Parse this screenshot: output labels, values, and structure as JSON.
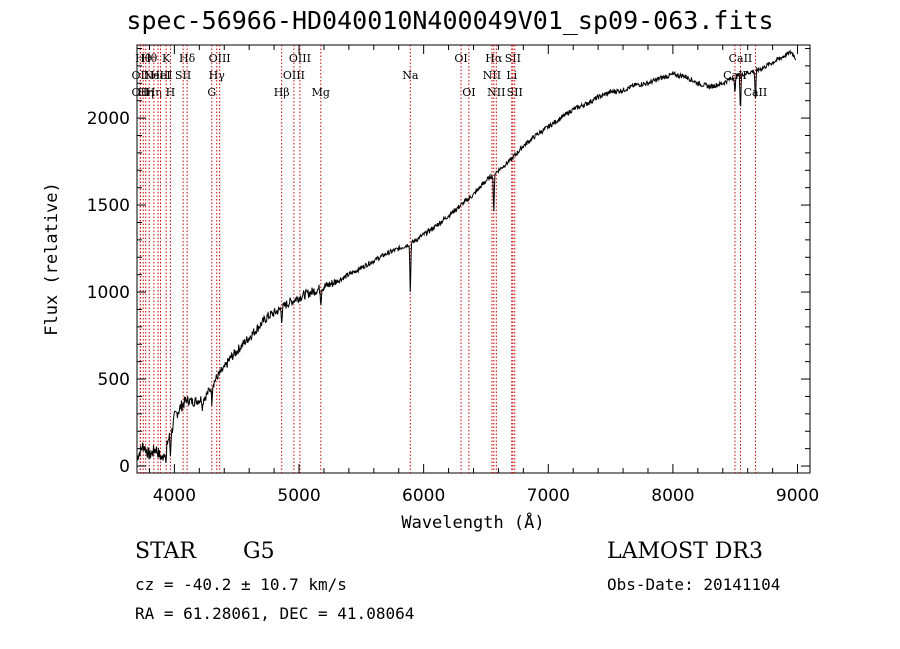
{
  "chart_data": {
    "type": "line",
    "title": "spec-56966-HD040010N400049V01_sp09-063.fits",
    "xlabel": "Wavelength (Å)",
    "ylabel": "Flux (relative)",
    "xlim": [
      3700,
      9100
    ],
    "ylim": [
      -40,
      2420
    ],
    "xticks": [
      4000,
      5000,
      6000,
      7000,
      8000,
      9000
    ],
    "yticks": [
      0,
      500,
      1000,
      1500,
      2000
    ],
    "series": [
      {
        "name": "flux",
        "x": [
          3700,
          3750,
          3800,
          3850,
          3900,
          3950,
          3980,
          4000,
          4050,
          4100,
          4150,
          4200,
          4250,
          4300,
          4350,
          4400,
          4450,
          4500,
          4550,
          4600,
          4650,
          4700,
          4750,
          4800,
          4850,
          4900,
          4950,
          5000,
          5100,
          5200,
          5300,
          5400,
          5500,
          5600,
          5700,
          5800,
          5900,
          6000,
          6100,
          6200,
          6300,
          6400,
          6500,
          6600,
          6700,
          6800,
          6900,
          7000,
          7100,
          7200,
          7300,
          7400,
          7500,
          7600,
          7700,
          7800,
          7900,
          8000,
          8100,
          8200,
          8300,
          8400,
          8500,
          8600,
          8700,
          8800,
          8900,
          8950,
          8990
        ],
        "y": [
          50,
          120,
          60,
          100,
          40,
          150,
          200,
          280,
          340,
          380,
          370,
          380,
          400,
          460,
          520,
          560,
          620,
          660,
          700,
          740,
          780,
          820,
          860,
          880,
          900,
          930,
          950,
          970,
          1000,
          1030,
          1060,
          1100,
          1140,
          1180,
          1220,
          1250,
          1280,
          1330,
          1380,
          1440,
          1500,
          1560,
          1640,
          1700,
          1760,
          1840,
          1900,
          1950,
          2000,
          2050,
          2080,
          2120,
          2150,
          2160,
          2190,
          2200,
          2230,
          2250,
          2240,
          2200,
          2180,
          2200,
          2240,
          2260,
          2280,
          2320,
          2360,
          2380,
          2340
        ]
      }
    ],
    "absorption": [
      {
        "x": 3933,
        "depth": 120
      },
      {
        "x": 3968,
        "depth": 120
      },
      {
        "x": 4226,
        "depth": 60
      },
      {
        "x": 4300,
        "depth": 90
      },
      {
        "x": 4861,
        "depth": 70
      },
      {
        "x": 5175,
        "depth": 90
      },
      {
        "x": 5893,
        "depth": 310
      },
      {
        "x": 6563,
        "depth": 260
      },
      {
        "x": 8498,
        "depth": 120
      },
      {
        "x": 8542,
        "depth": 230
      },
      {
        "x": 8662,
        "depth": 200
      }
    ],
    "lines": [
      {
        "x": 3727,
        "label": "OII",
        "row": 2
      },
      {
        "x": 3727,
        "label": "OII",
        "row": 3
      },
      {
        "x": 3750,
        "label": "Hθ",
        "row": 1
      },
      {
        "x": 3770,
        "label": "Hη",
        "row": 3
      },
      {
        "x": 3798,
        "label": "Hθ",
        "row": 1
      },
      {
        "x": 3835,
        "label": "Hη",
        "row": 3
      },
      {
        "x": 3869,
        "label": "NeIII",
        "row": 2
      },
      {
        "x": 3889,
        "label": "HeI",
        "row": 2
      },
      {
        "x": 3934,
        "label": "K",
        "row": 1
      },
      {
        "x": 3968,
        "label": "H",
        "row": 3
      },
      {
        "x": 4070,
        "label": "SII",
        "row": 2
      },
      {
        "x": 4102,
        "label": "Hδ",
        "row": 1
      },
      {
        "x": 4300,
        "label": "G",
        "row": 3
      },
      {
        "x": 4340,
        "label": "Hγ",
        "row": 2
      },
      {
        "x": 4363,
        "label": "OIII",
        "row": 1
      },
      {
        "x": 4861,
        "label": "Hβ",
        "row": 3
      },
      {
        "x": 4959,
        "label": "OIII",
        "row": 2
      },
      {
        "x": 5007,
        "label": "OIII",
        "row": 1
      },
      {
        "x": 5175,
        "label": "Mg",
        "row": 3
      },
      {
        "x": 5893,
        "label": "Na",
        "row": 2
      },
      {
        "x": 6300,
        "label": "OI",
        "row": 1
      },
      {
        "x": 6363,
        "label": "OI",
        "row": 3
      },
      {
        "x": 6548,
        "label": "NII",
        "row": 2
      },
      {
        "x": 6563,
        "label": "Hα",
        "row": 1
      },
      {
        "x": 6583,
        "label": "NII",
        "row": 3
      },
      {
        "x": 6707,
        "label": "Li",
        "row": 2
      },
      {
        "x": 6716,
        "label": "SII",
        "row": 1
      },
      {
        "x": 6731,
        "label": "SII",
        "row": 3
      },
      {
        "x": 8498,
        "label": "CaII",
        "row": 2
      },
      {
        "x": 8542,
        "label": "CaII",
        "row": 1
      },
      {
        "x": 8662,
        "label": "CaII",
        "row": 3
      }
    ]
  },
  "info": {
    "class_label": "STAR",
    "subclass": "G5",
    "survey": "LAMOST DR3",
    "redshift": "cz = -40.2 ± 10.7 km/s",
    "obs_date": "Obs-Date: 20141104",
    "coords": "RA =  61.28061, DEC =  41.08064"
  }
}
